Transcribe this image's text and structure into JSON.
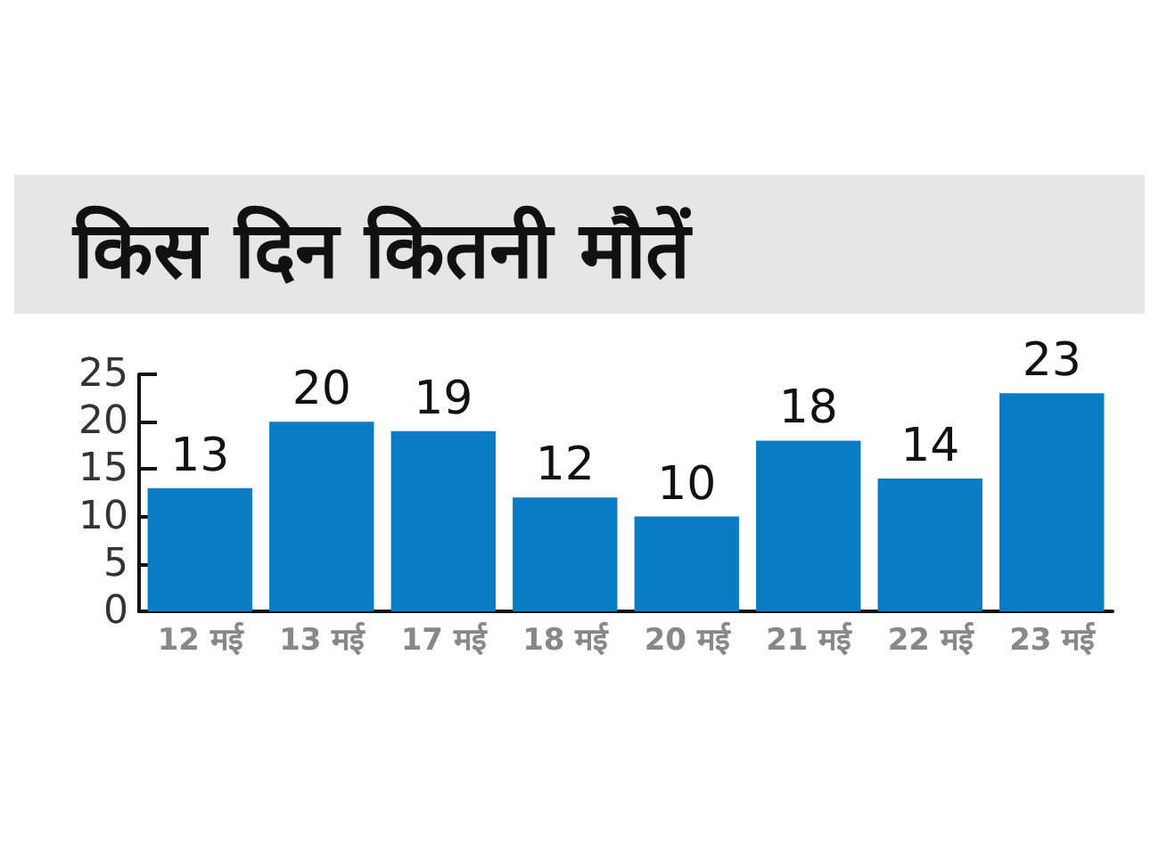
{
  "chart_data": {
    "type": "bar",
    "title": "किस दिन कितनी मौतें",
    "categories": [
      "12 मई",
      "13 मई",
      "17 मई",
      "18 मई",
      "20 मई",
      "21 मई",
      "22 मई",
      "23 मई"
    ],
    "values": [
      13,
      20,
      19,
      12,
      10,
      18,
      14,
      23
    ],
    "color": "#0a7cc4",
    "ylim": [
      0,
      25
    ],
    "yticks": [
      0,
      5,
      10,
      15,
      20,
      25
    ],
    "grid": false,
    "data_labels": true
  }
}
